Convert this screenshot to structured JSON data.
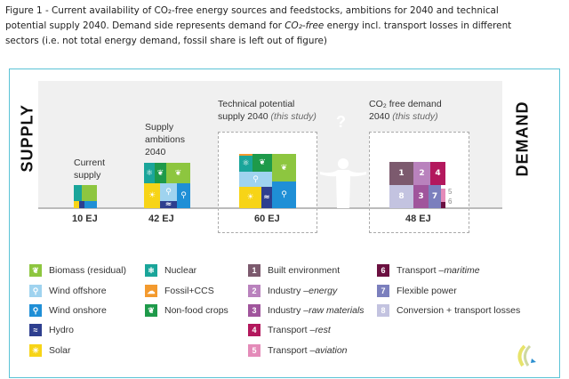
{
  "caption": {
    "line1": "Figure 1 - Current availability of CO₂-free energy sources and feedstocks, ambitions for 2040 and technical",
    "line2a": "potential supply 2040. Demand side represents demand for ",
    "line2b": "CO₂-free",
    "line2c": " energy incl. transport losses in different",
    "line3": "sectors (i.e. not total energy demand, fossil share is left out of figure)"
  },
  "supply_label": "SUPPLY",
  "demand_label": "DEMAND",
  "bars": {
    "current": {
      "title1": "Current",
      "title2": "supply",
      "total": "10 EJ"
    },
    "ambitions": {
      "title1": "Supply",
      "title2": "ambitions",
      "title3": "2040",
      "total": "42 EJ"
    },
    "technical": {
      "title1": "Technical potential",
      "title2": "supply 2040 ",
      "title2i": "(this study)",
      "total": "60 EJ"
    },
    "demand": {
      "title1": "CO₂ free demand",
      "title2": "2040 ",
      "title2i": "(this study)",
      "total": "48 EJ",
      "block_labels": [
        "1",
        "2",
        "4",
        "8",
        "3",
        "7",
        "5",
        "6"
      ]
    }
  },
  "question_mark": "?",
  "colors": {
    "biomass": "#8dc63f",
    "wind_offshore": "#9fd3ef",
    "wind_onshore": "#1f8fd6",
    "hydro": "#2e3f8f",
    "solar": "#f7d417",
    "nuclear": "#1aa59a",
    "fossil_ccs": "#f39a2e",
    "non_food": "#1e9a4a",
    "d1": "#7c5a6e",
    "d2": "#b982bd",
    "d3": "#a0559c",
    "d4": "#b3185d",
    "d5": "#e48bb9",
    "d6": "#6b1040",
    "d7": "#7b7fbd",
    "d8": "#c3c3e0"
  },
  "legend": {
    "supply": [
      {
        "label": "Biomass (residual)",
        "icon": "leaf-icon",
        "color": "#8dc63f"
      },
      {
        "label": "Wind offshore",
        "icon": "wind-turbine-icon",
        "color": "#9fd3ef"
      },
      {
        "label": "Wind onshore",
        "icon": "wind-turbine-icon",
        "color": "#1f8fd6"
      },
      {
        "label": "Hydro",
        "icon": "wave-icon",
        "color": "#2e3f8f"
      },
      {
        "label": "Solar",
        "icon": "sun-icon",
        "color": "#f7d417"
      },
      {
        "label": "Nuclear",
        "icon": "atom-icon",
        "color": "#1aa59a"
      },
      {
        "label": "Fossil+CCS",
        "icon": "cloud-icon",
        "color": "#f39a2e"
      },
      {
        "label": "Non-food crops",
        "icon": "leaf-icon",
        "color": "#1e9a4a"
      }
    ],
    "demand": [
      {
        "n": "1",
        "label": "Built environment",
        "italic": "",
        "color": "#7c5a6e"
      },
      {
        "n": "2",
        "label": "Industry – ",
        "italic": "energy",
        "color": "#b982bd"
      },
      {
        "n": "3",
        "label": "Industry – ",
        "italic": "raw materials",
        "color": "#a0559c"
      },
      {
        "n": "4",
        "label": "Transport – ",
        "italic": "rest",
        "color": "#b3185d"
      },
      {
        "n": "5",
        "label": "Transport – ",
        "italic": "aviation",
        "color": "#e48bb9"
      },
      {
        "n": "6",
        "label": "Transport – ",
        "italic": "maritime",
        "color": "#6b1040"
      },
      {
        "n": "7",
        "label": "Flexible power",
        "italic": "",
        "color": "#7b7fbd"
      },
      {
        "n": "8",
        "label": "Conversion + transport losses",
        "italic": "",
        "color": "#c3c3e0"
      }
    ]
  }
}
